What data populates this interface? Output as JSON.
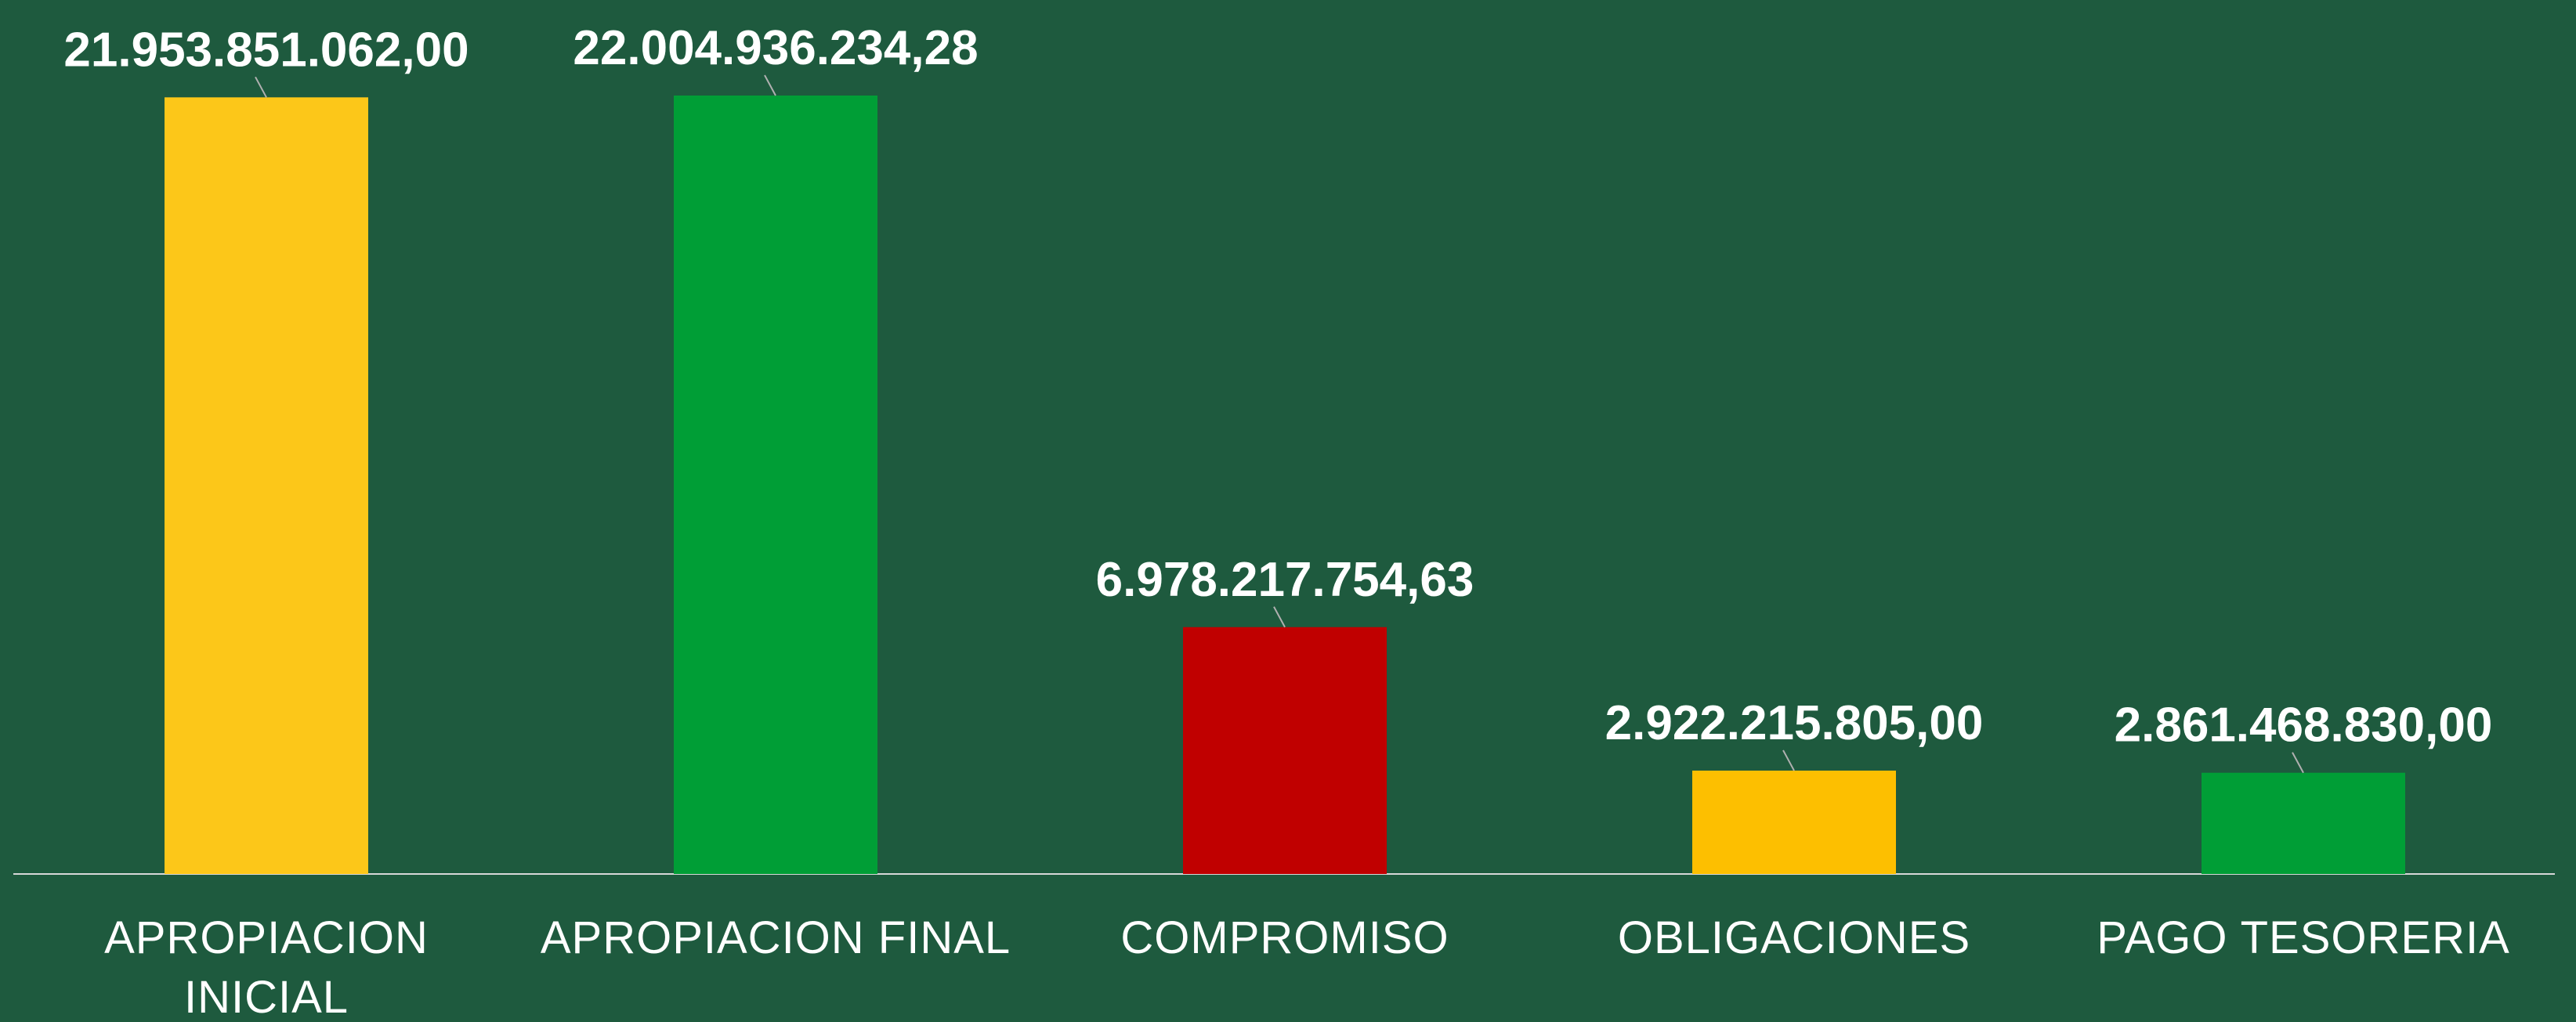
{
  "chart_data": {
    "type": "bar",
    "categories": [
      "APROPIACION INICIAL",
      "APROPIACION FINAL",
      "COMPROMISO",
      "OBLIGACIONES",
      "PAGO TESORERIA"
    ],
    "values": [
      21953851062.0,
      22004936234.28,
      6978217754.63,
      2922215805.0,
      2861468830.0
    ],
    "value_labels": [
      "21.953.851.062,00",
      "22.004.936.234,28",
      "6.978.217.754,63",
      "2.922.215.805,00",
      "2.861.468.830,00"
    ],
    "colors": [
      "#fcc719",
      "#009e36",
      "#c00000",
      "#fdbf00",
      "#009e36"
    ]
  }
}
